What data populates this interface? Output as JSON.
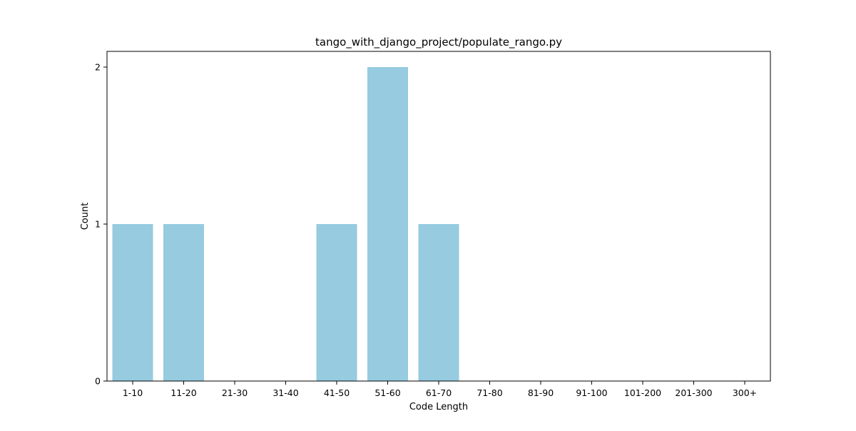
{
  "chart_data": {
    "type": "bar",
    "title": "tango_with_django_project/populate_rango.py",
    "xlabel": "Code Length",
    "ylabel": "Count",
    "categories": [
      "1-10",
      "11-20",
      "21-30",
      "31-40",
      "41-50",
      "51-60",
      "61-70",
      "71-80",
      "81-90",
      "91-100",
      "101-200",
      "201-300",
      "300+"
    ],
    "values": [
      1,
      1,
      0,
      0,
      1,
      2,
      1,
      0,
      0,
      0,
      0,
      0,
      0
    ],
    "ylim": [
      0,
      2.1
    ],
    "yticks": [
      0,
      1,
      2
    ],
    "grid": false,
    "legend": "none",
    "bar_color": "#96cbe0"
  }
}
